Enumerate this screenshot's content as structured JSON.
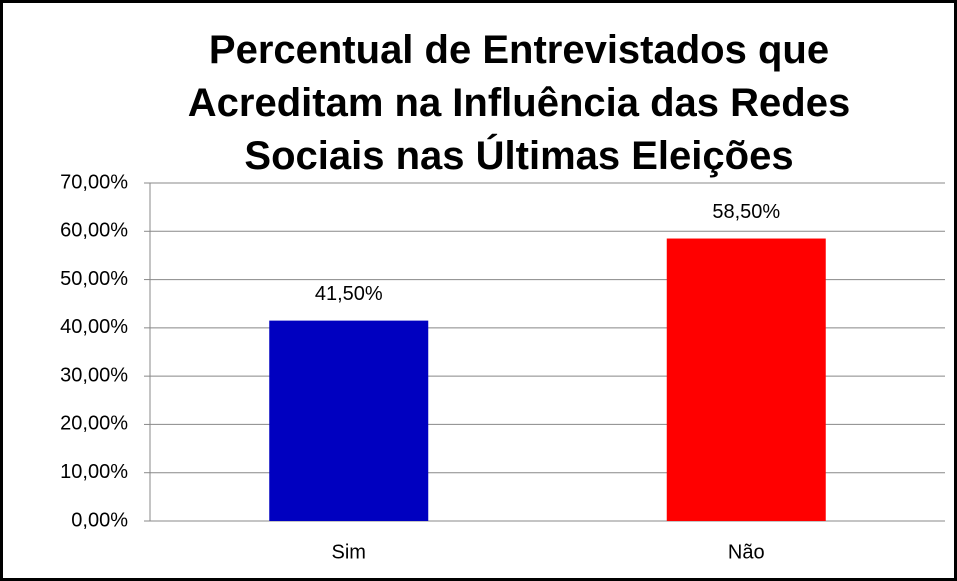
{
  "chart_data": {
    "type": "bar",
    "title": "Percentual de Entrevistados que Acreditam na Influência das Redes Sociais nas Últimas Eleições",
    "categories": [
      "Sim",
      "Não"
    ],
    "values": [
      41.5,
      58.5
    ],
    "value_labels": [
      "41,50%",
      "58,50%"
    ],
    "colors": [
      "#0000c0",
      "#ff0000"
    ],
    "ylim": [
      0,
      70
    ],
    "yticks": [
      {
        "value": 0,
        "label": "0,00%"
      },
      {
        "value": 10,
        "label": "10,00%"
      },
      {
        "value": 20,
        "label": "20,00%"
      },
      {
        "value": 30,
        "label": "30,00%"
      },
      {
        "value": 40,
        "label": "40,00%"
      },
      {
        "value": 50,
        "label": "50,00%"
      },
      {
        "value": 60,
        "label": "60,00%"
      },
      {
        "value": 70,
        "label": "70,00%"
      }
    ],
    "grid": true
  }
}
